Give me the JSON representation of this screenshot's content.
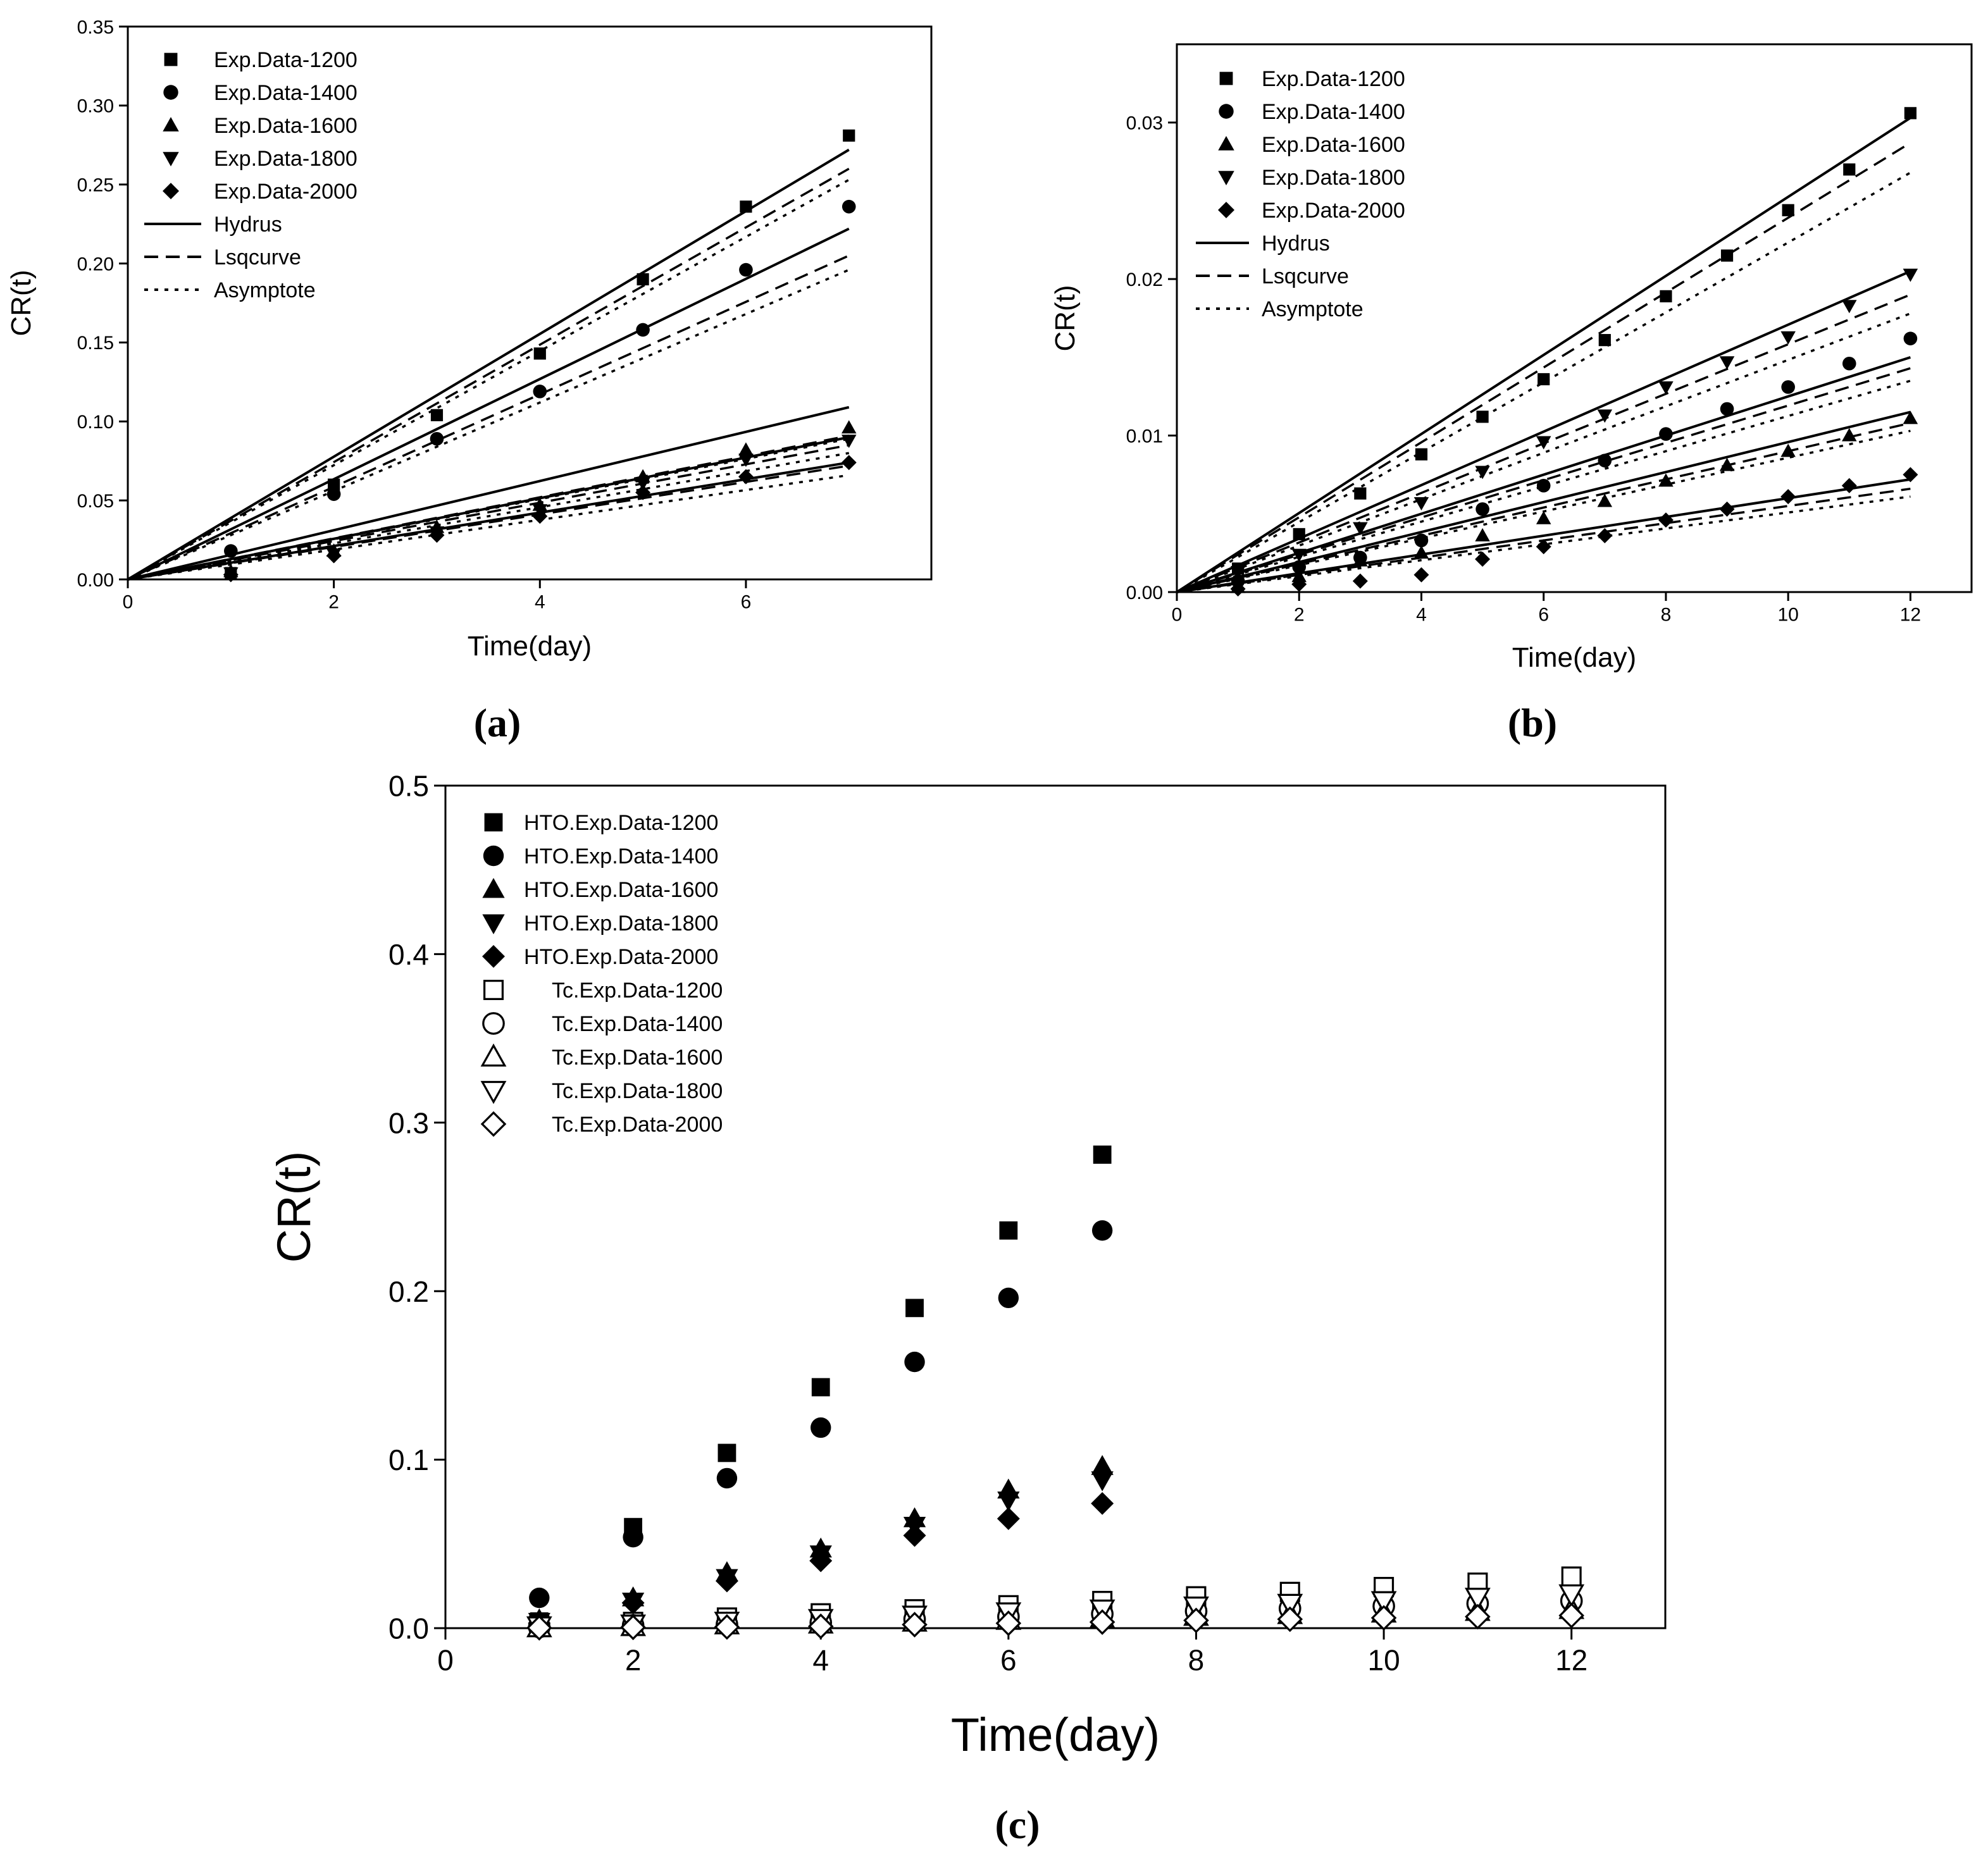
{
  "chart_data": [
    {
      "type": "scatter",
      "panel": "a",
      "caption": "(a)",
      "xlabel": "Time(day)",
      "ylabel": "CR(t)",
      "xlim": [
        0,
        7.8
      ],
      "ylim": [
        0,
        0.35
      ],
      "xticks": [
        0,
        2,
        4,
        6
      ],
      "yticks": [
        "0.00",
        "0.05",
        "0.10",
        "0.15",
        "0.20",
        "0.25",
        "0.30",
        "0.35"
      ],
      "legend_position": "top-left",
      "legend": [
        "Exp.Data-1200",
        "Exp.Data-1400",
        "Exp.Data-1600",
        "Exp.Data-1800",
        "Exp.Data-2000",
        "Hydrus",
        "Lsqcurve",
        "Asymptote"
      ],
      "series": [
        {
          "name": "Exp.Data-1200",
          "marker": "square",
          "x": [
            1,
            2,
            3,
            4,
            5,
            6,
            7
          ],
          "y": [
            0.004,
            0.06,
            0.104,
            0.143,
            0.19,
            0.236,
            0.281
          ]
        },
        {
          "name": "Exp.Data-1400",
          "marker": "circle",
          "x": [
            1,
            2,
            3,
            4,
            5,
            6,
            7
          ],
          "y": [
            0.018,
            0.054,
            0.089,
            0.119,
            0.158,
            0.196,
            0.236
          ]
        },
        {
          "name": "Exp.Data-1600",
          "marker": "triangle-up",
          "x": [
            1,
            2,
            3,
            4,
            5,
            6,
            7
          ],
          "y": [
            0.005,
            0.018,
            0.033,
            0.047,
            0.065,
            0.082,
            0.096
          ]
        },
        {
          "name": "Exp.Data-1800",
          "marker": "triangle-down",
          "x": [
            1,
            2,
            3,
            4,
            5,
            6,
            7
          ],
          "y": [
            0.004,
            0.016,
            0.03,
            0.044,
            0.061,
            0.076,
            0.088
          ]
        },
        {
          "name": "Exp.Data-2000",
          "marker": "diamond",
          "x": [
            1,
            2,
            3,
            4,
            5,
            6,
            7
          ],
          "y": [
            0.003,
            0.015,
            0.028,
            0.04,
            0.055,
            0.065,
            0.074
          ]
        }
      ],
      "fit_lines": [
        {
          "model": "Hydrus",
          "style": "solid",
          "end_y": [
            0.272,
            0.222,
            0.109,
            0.09,
            0.074
          ]
        },
        {
          "model": "Lsqcurve",
          "style": "dashed",
          "end_y": [
            0.26,
            0.205,
            0.091,
            0.085,
            0.072
          ]
        },
        {
          "model": "Asymptote",
          "style": "dotted",
          "end_y": [
            0.253,
            0.196,
            0.089,
            0.08,
            0.066
          ]
        }
      ]
    },
    {
      "type": "scatter",
      "panel": "b",
      "caption": "(b)",
      "xlabel": "Time(day)",
      "ylabel": "CR(t)",
      "xlim": [
        0,
        13
      ],
      "ylim": [
        0,
        0.035
      ],
      "xticks": [
        0,
        2,
        4,
        6,
        8,
        10,
        12
      ],
      "yticks": [
        "0.00",
        "0.01",
        "0.02",
        "0.03"
      ],
      "legend_position": "top-left",
      "legend": [
        "Exp.Data-1200",
        "Exp.Data-1400",
        "Exp.Data-1600",
        "Exp.Data-1800",
        "Exp.Data-2000",
        "Hydrus",
        "Lsqcurve",
        "Asymptote"
      ],
      "series": [
        {
          "name": "Exp.Data-1200",
          "marker": "square",
          "x": [
            1,
            2,
            3,
            4,
            5,
            6,
            7,
            8,
            9,
            10,
            11,
            12
          ],
          "y": [
            0.0015,
            0.0037,
            0.0063,
            0.0088,
            0.0112,
            0.0136,
            0.0161,
            0.0189,
            0.0215,
            0.0244,
            0.027,
            0.0306
          ]
        },
        {
          "name": "Exp.Data-1400",
          "marker": "circle",
          "x": [
            1,
            2,
            3,
            4,
            5,
            6,
            7,
            8,
            9,
            10,
            11,
            12
          ],
          "y": [
            0.0007,
            0.0016,
            0.0022,
            0.0033,
            0.0053,
            0.0068,
            0.0084,
            0.0101,
            0.0117,
            0.0131,
            0.0146,
            0.0162
          ]
        },
        {
          "name": "Exp.Data-1600",
          "marker": "triangle-up",
          "x": [
            1,
            2,
            3,
            4,
            5,
            6,
            7,
            8,
            9,
            10,
            11,
            12
          ],
          "y": [
            0.0003,
            0.001,
            0.002,
            0.0025,
            0.0036,
            0.0047,
            0.0058,
            0.0071,
            0.0081,
            0.009,
            0.01,
            0.0111
          ]
        },
        {
          "name": "Exp.Data-1800",
          "marker": "triangle-down",
          "x": [
            1,
            2,
            3,
            4,
            5,
            6,
            7,
            8,
            9,
            10,
            11,
            12
          ],
          "y": [
            0.0013,
            0.0024,
            0.0041,
            0.0057,
            0.0077,
            0.0096,
            0.0113,
            0.0131,
            0.0147,
            0.0163,
            0.0183,
            0.0203
          ]
        },
        {
          "name": "Exp.Data-2000",
          "marker": "diamond",
          "x": [
            1,
            2,
            3,
            4,
            5,
            6,
            7,
            8,
            9,
            10,
            11,
            12
          ],
          "y": [
            0.0002,
            0.0005,
            0.0007,
            0.0011,
            0.0021,
            0.0029,
            0.0036,
            0.0046,
            0.0053,
            0.0061,
            0.0068,
            0.0075
          ]
        }
      ],
      "fit_lines": [
        {
          "model": "Hydrus",
          "style": "solid",
          "end_y": [
            0.0303,
            0.015,
            0.0115,
            0.0205,
            0.0072
          ]
        },
        {
          "model": "Lsqcurve",
          "style": "dashed",
          "end_y": [
            0.0287,
            0.0143,
            0.0108,
            0.019,
            0.0066
          ]
        },
        {
          "model": "Asymptote",
          "style": "dotted",
          "end_y": [
            0.0268,
            0.0135,
            0.0103,
            0.0178,
            0.0061
          ]
        }
      ]
    },
    {
      "type": "scatter",
      "panel": "c",
      "caption": "(c)",
      "xlabel": "Time(day)",
      "ylabel": "CR(t)",
      "xlim": [
        0,
        13
      ],
      "ylim": [
        0,
        0.5
      ],
      "xticks": [
        0,
        2,
        4,
        6,
        8,
        10,
        12
      ],
      "yticks": [
        "0.0",
        "0.1",
        "0.2",
        "0.3",
        "0.4",
        "0.5"
      ],
      "legend_position": "top-left",
      "legend": [
        "HTO.Exp.Data-1200",
        "HTO.Exp.Data-1400",
        "HTO.Exp.Data-1600",
        "HTO.Exp.Data-1800",
        "HTO.Exp.Data-2000",
        "Tc.Exp.Data-1200",
        "Tc.Exp.Data-1400",
        "Tc.Exp.Data-1600",
        "Tc.Exp.Data-1800",
        "Tc.Exp.Data-2000"
      ],
      "series": [
        {
          "name": "HTO.Exp.Data-1200",
          "marker": "square",
          "filled": true,
          "x": [
            1,
            2,
            3,
            4,
            5,
            6,
            7
          ],
          "y": [
            0.004,
            0.06,
            0.104,
            0.143,
            0.19,
            0.236,
            0.281
          ]
        },
        {
          "name": "HTO.Exp.Data-1400",
          "marker": "circle",
          "filled": true,
          "x": [
            1,
            2,
            3,
            4,
            5,
            6,
            7
          ],
          "y": [
            0.018,
            0.054,
            0.089,
            0.119,
            0.158,
            0.196,
            0.236
          ]
        },
        {
          "name": "HTO.Exp.Data-1600",
          "marker": "triangle-up",
          "filled": true,
          "x": [
            1,
            2,
            3,
            4,
            5,
            6,
            7
          ],
          "y": [
            0.005,
            0.018,
            0.033,
            0.047,
            0.065,
            0.082,
            0.096
          ]
        },
        {
          "name": "HTO.Exp.Data-1800",
          "marker": "triangle-down",
          "filled": true,
          "x": [
            1,
            2,
            3,
            4,
            5,
            6,
            7
          ],
          "y": [
            0.004,
            0.016,
            0.03,
            0.044,
            0.061,
            0.076,
            0.088
          ]
        },
        {
          "name": "HTO.Exp.Data-2000",
          "marker": "diamond",
          "filled": true,
          "x": [
            1,
            2,
            3,
            4,
            5,
            6,
            7
          ],
          "y": [
            0.003,
            0.015,
            0.028,
            0.04,
            0.055,
            0.065,
            0.074
          ]
        },
        {
          "name": "Tc.Exp.Data-1200",
          "marker": "square",
          "filled": false,
          "x": [
            1,
            2,
            3,
            4,
            5,
            6,
            7,
            8,
            9,
            10,
            11,
            12
          ],
          "y": [
            0.0015,
            0.0037,
            0.0063,
            0.0088,
            0.0112,
            0.0136,
            0.0161,
            0.0189,
            0.0215,
            0.0244,
            0.027,
            0.0306
          ]
        },
        {
          "name": "Tc.Exp.Data-1400",
          "marker": "circle",
          "filled": false,
          "x": [
            1,
            2,
            3,
            4,
            5,
            6,
            7,
            8,
            9,
            10,
            11,
            12
          ],
          "y": [
            0.0007,
            0.0016,
            0.0022,
            0.0033,
            0.0053,
            0.0068,
            0.0084,
            0.0101,
            0.0117,
            0.0131,
            0.0146,
            0.0162
          ]
        },
        {
          "name": "Tc.Exp.Data-1600",
          "marker": "triangle-up",
          "filled": false,
          "x": [
            1,
            2,
            3,
            4,
            5,
            6,
            7,
            8,
            9,
            10,
            11,
            12
          ],
          "y": [
            0.0003,
            0.001,
            0.002,
            0.0025,
            0.0036,
            0.0047,
            0.0058,
            0.0071,
            0.0081,
            0.009,
            0.01,
            0.0111
          ]
        },
        {
          "name": "Tc.Exp.Data-1800",
          "marker": "triangle-down",
          "filled": false,
          "x": [
            1,
            2,
            3,
            4,
            5,
            6,
            7,
            8,
            9,
            10,
            11,
            12
          ],
          "y": [
            0.0013,
            0.0024,
            0.0041,
            0.0057,
            0.0077,
            0.0096,
            0.0113,
            0.0131,
            0.0147,
            0.0163,
            0.0183,
            0.0203
          ]
        },
        {
          "name": "Tc.Exp.Data-2000",
          "marker": "diamond",
          "filled": false,
          "x": [
            1,
            2,
            3,
            4,
            5,
            6,
            7,
            8,
            9,
            10,
            11,
            12
          ],
          "y": [
            0.0002,
            0.0005,
            0.0007,
            0.0011,
            0.0021,
            0.0029,
            0.0036,
            0.0046,
            0.0053,
            0.0061,
            0.0068,
            0.0075
          ]
        }
      ]
    }
  ]
}
